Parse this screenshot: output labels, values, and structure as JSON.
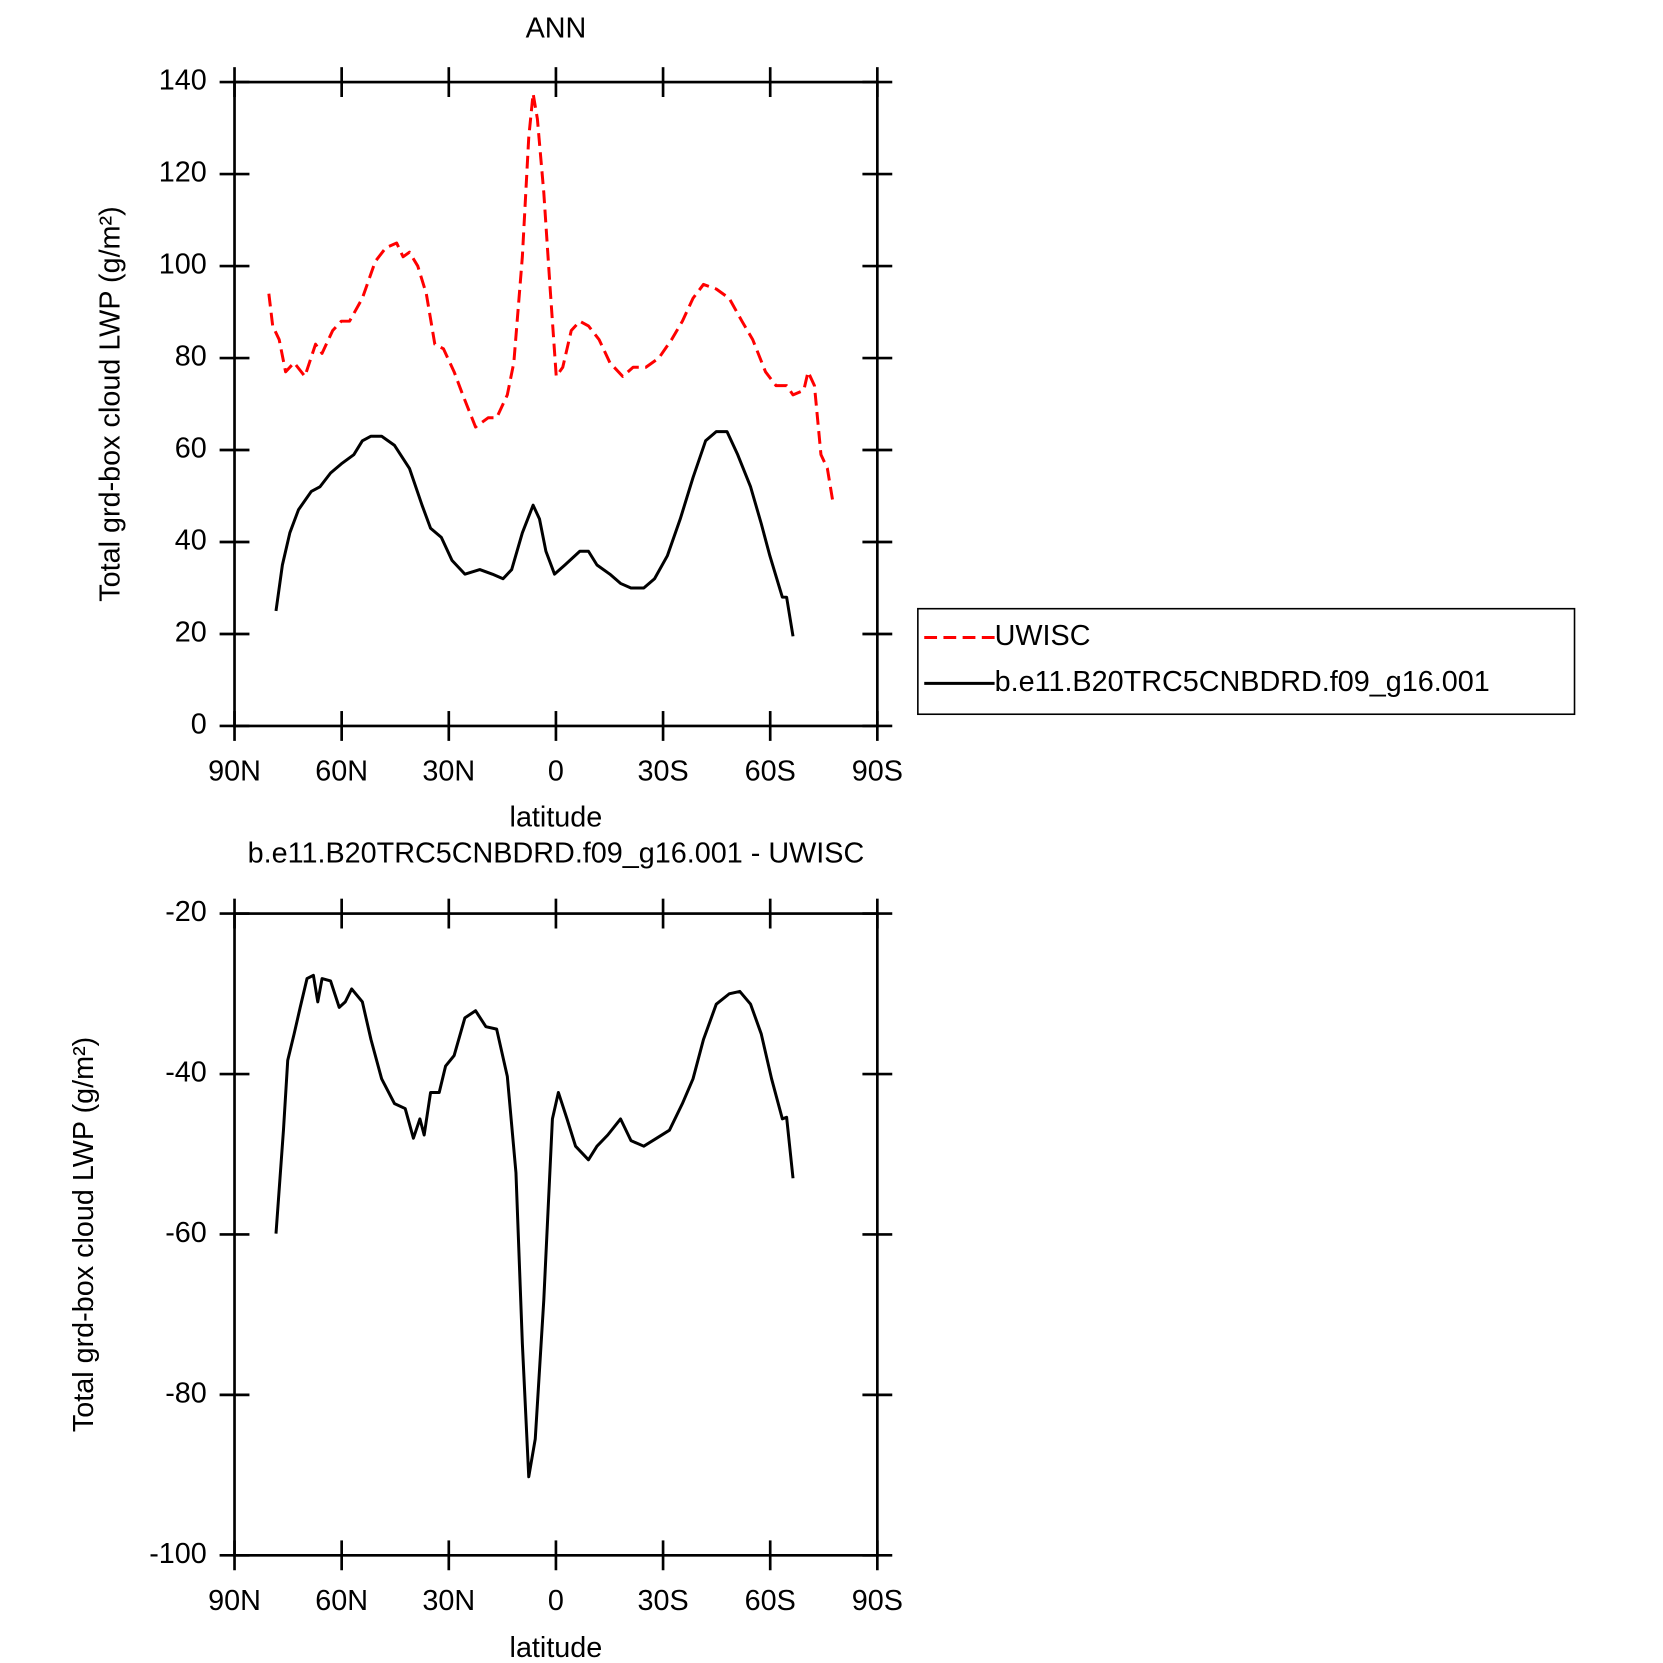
{
  "chart_data": [
    {
      "type": "line",
      "title": "ANN",
      "xlabel": "latitude",
      "ylabel": "Total grd-box cloud LWP (g/m²)",
      "xlim": [
        90,
        -90
      ],
      "xticks": [
        {
          "value": 90,
          "label": "90N"
        },
        {
          "value": 60,
          "label": "60N"
        },
        {
          "value": 30,
          "label": "30N"
        },
        0,
        {
          "value": -30,
          "label": "30S"
        },
        {
          "value": -60,
          "label": "60S"
        },
        {
          "value": -90,
          "label": "90S"
        }
      ],
      "ylim": [
        0,
        140
      ],
      "yticks": [
        0,
        20,
        40,
        60,
        80,
        100,
        120,
        140
      ],
      "legend": "outside-right",
      "series": [
        {
          "name": "UWISC",
          "color": "#ff0000",
          "dashed": true,
          "x": [
            80.4,
            79.3,
            77.5,
            75.7,
            73.3,
            70.3,
            67.3,
            65.5,
            62.5,
            60.1,
            57.8,
            54.2,
            50.6,
            47.6,
            44.6,
            42.8,
            41.0,
            38.7,
            36.3,
            33.9,
            31.5,
            28.5,
            26.1,
            22.5,
            19.0,
            16.6,
            13.6,
            11.8,
            9.4,
            7.6,
            6.4,
            5.2,
            3.4,
            1.6,
            -0.1,
            -1.9,
            -4.3,
            -6.7,
            -9.1,
            -12.1,
            -15.1,
            -18.7,
            -21.6,
            -25.2,
            -28.8,
            -32.4,
            -35.4,
            -38.4,
            -41.3,
            -44.9,
            -48.5,
            -52.1,
            -55.1,
            -58.7,
            -61.6,
            -64.6,
            -66.4,
            -69.4,
            -70.6,
            -72.4,
            -74.2,
            -76.0,
            -77.5
          ],
          "values": [
            94,
            87,
            84,
            77,
            79,
            76,
            83,
            81,
            86,
            88,
            88,
            93,
            101,
            104,
            105,
            102,
            103,
            100,
            94,
            83,
            82,
            77,
            72,
            65,
            67,
            67,
            72,
            79,
            102,
            128,
            137.5,
            132,
            116,
            95,
            76,
            78,
            86,
            88,
            87,
            84,
            79,
            76,
            78,
            78,
            80,
            84,
            88,
            93,
            96,
            95,
            93,
            88,
            84,
            77,
            74,
            74,
            72,
            73,
            77,
            74,
            59,
            56,
            49
          ]
        },
        {
          "name": "b.e11.B20TRC5CNBDRD.f09_g16.001",
          "color": "#000000",
          "dashed": false,
          "x": [
            78.4,
            76.6,
            74.5,
            72.1,
            68.5,
            66.1,
            63.1,
            60.1,
            56.6,
            54.2,
            51.8,
            48.8,
            45.2,
            41.0,
            37.5,
            35.1,
            32.1,
            29.1,
            25.5,
            21.3,
            17.8,
            14.8,
            12.4,
            9.4,
            6.4,
            4.6,
            2.8,
            0.4,
            -2.5,
            -6.7,
            -9.1,
            -11.5,
            -15.1,
            -18.1,
            -21.0,
            -24.6,
            -27.6,
            -31.2,
            -34.8,
            -38.4,
            -41.9,
            -44.9,
            -47.9,
            -50.9,
            -54.5,
            -57.5,
            -59.9,
            -63.4,
            -64.6,
            -66.4
          ],
          "values": [
            25,
            35,
            42,
            47,
            51,
            52,
            55,
            57,
            59,
            62,
            63,
            63,
            61,
            56,
            48,
            43,
            41,
            36,
            33,
            34,
            33,
            32,
            34,
            42,
            48,
            45,
            38,
            33,
            35,
            38,
            38,
            35,
            33,
            31,
            30,
            30,
            32,
            37,
            45,
            54,
            62,
            64,
            64,
            59,
            52,
            44,
            37,
            28,
            28,
            19.5
          ]
        }
      ]
    },
    {
      "type": "line",
      "title": "b.e11.B20TRC5CNBDRD.f09_g16.001 - UWISC",
      "xlabel": "latitude",
      "ylabel": "Total grd-box cloud LWP (g/m²)",
      "xlim": [
        90,
        -90
      ],
      "xticks": [
        {
          "value": 90,
          "label": "90N"
        },
        {
          "value": 60,
          "label": "60N"
        },
        {
          "value": 30,
          "label": "30N"
        },
        0,
        {
          "value": -30,
          "label": "30S"
        },
        {
          "value": -60,
          "label": "60S"
        },
        {
          "value": -90,
          "label": "90S"
        }
      ],
      "ylim": [
        -100,
        -20
      ],
      "yticks": [
        -100,
        -80,
        -60,
        -40,
        -20
      ],
      "series": [
        {
          "color": "#000000",
          "dashed": false,
          "x": [
            78.4,
            76.3,
            75.1,
            73.3,
            71.6,
            69.7,
            67.9,
            66.7,
            65.5,
            63.1,
            60.7,
            59.0,
            57.2,
            54.2,
            51.8,
            48.8,
            45.2,
            42.2,
            39.9,
            38.1,
            36.9,
            35.1,
            32.7,
            30.9,
            28.5,
            25.5,
            22.5,
            19.6,
            16.6,
            13.6,
            11.2,
            9.4,
            7.6,
            5.8,
            3.4,
            1.0,
            -0.7,
            -3.1,
            -5.5,
            -9.1,
            -11.5,
            -14.5,
            -18.1,
            -21.0,
            -24.6,
            -28.2,
            -31.8,
            -35.4,
            -38.4,
            -41.3,
            -44.9,
            -48.5,
            -51.5,
            -54.5,
            -57.5,
            -60.4,
            -63.4,
            -64.6,
            -66.4
          ],
          "values": [
            -59.9,
            -47,
            -38.3,
            -35,
            -31.7,
            -28.1,
            -27.7,
            -31,
            -28.1,
            -28.4,
            -31.7,
            -31,
            -29.4,
            -31,
            -35.7,
            -40.6,
            -43.7,
            -44.3,
            -48,
            -45.6,
            -47.6,
            -42.3,
            -42.3,
            -39,
            -37.7,
            -33,
            -32.1,
            -34.1,
            -34.4,
            -40.3,
            -52.3,
            -73.6,
            -90.2,
            -85.5,
            -68.2,
            -45.6,
            -42.3,
            -45.6,
            -49,
            -50.7,
            -49,
            -47.6,
            -45.6,
            -48.3,
            -49,
            -48,
            -47,
            -43.7,
            -40.6,
            -35.7,
            -31.3,
            -30,
            -29.7,
            -31.3,
            -35,
            -40.6,
            -45.6,
            -45.4,
            -53
          ]
        }
      ]
    }
  ]
}
